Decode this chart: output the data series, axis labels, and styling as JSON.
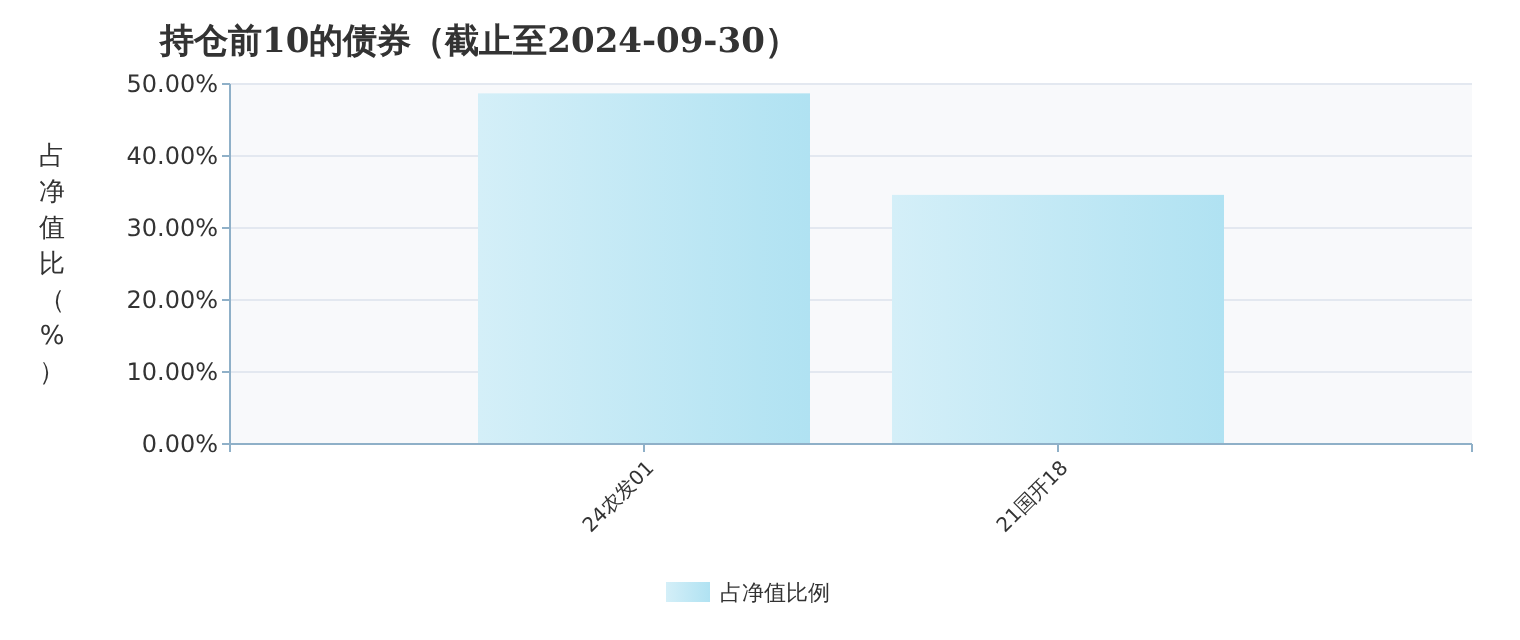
{
  "chart_data": {
    "type": "bar",
    "title": "持仓前10的债券（截止至2024-09-30）",
    "ylabel": "占净值比（%）",
    "categories": [
      null,
      "24农发01",
      "21国开18",
      null
    ],
    "series": [
      {
        "name": "占净值比例",
        "color": "#b0e2f2",
        "values": [
          null,
          48.7,
          34.6,
          null
        ]
      }
    ],
    "ylim": [
      0,
      50
    ],
    "yticks": [
      {
        "value": 0,
        "label": "0.00%"
      },
      {
        "value": 10,
        "label": "10.00%"
      },
      {
        "value": 20,
        "label": "20.00%"
      },
      {
        "value": 30,
        "label": "30.00%"
      },
      {
        "value": 40,
        "label": "40.00%"
      },
      {
        "value": 50,
        "label": "50.00%"
      }
    ],
    "grid": "y",
    "legend": "bottom"
  }
}
